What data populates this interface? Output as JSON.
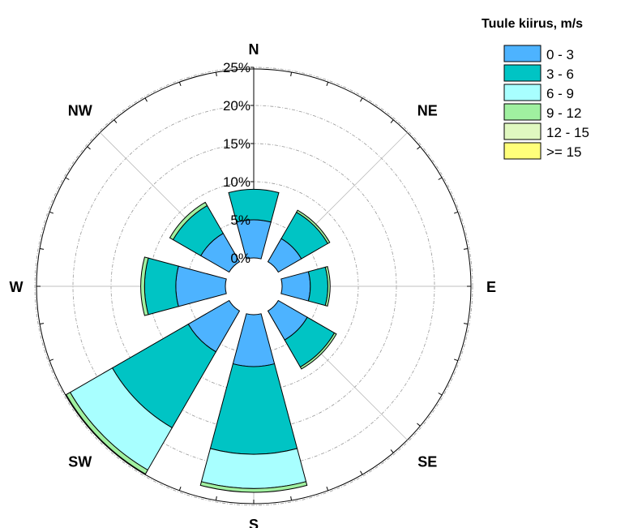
{
  "chart_data": {
    "type": "windrose",
    "legend_title": "Tuule kiirus, m/s",
    "directions": [
      "N",
      "NE",
      "E",
      "SE",
      "S",
      "SW",
      "W",
      "NW"
    ],
    "direction_angles": [
      0,
      45,
      90,
      135,
      180,
      225,
      270,
      315
    ],
    "radial_ticks": [
      "0%",
      "5%",
      "10%",
      "15%",
      "20%",
      "25%"
    ],
    "radial_range": [
      0,
      25
    ],
    "grid": true,
    "legend_position": "top-right",
    "bins": [
      {
        "label": "0 - 3",
        "color": "#4db3ff"
      },
      {
        "label": "3 - 6",
        "color": "#00c4c4"
      },
      {
        "label": "6 - 9",
        "color": "#a8ffff"
      },
      {
        "label": "9 - 12",
        "color": "#a0f0a0"
      },
      {
        "label": "12 - 15",
        "color": "#e0f8c0"
      },
      {
        "label": ">= 15",
        "color": "#ffff7a"
      }
    ],
    "series": [
      {
        "direction": "N",
        "values": [
          5.0,
          4.0,
          0.0,
          0.0,
          0.0,
          0.0
        ]
      },
      {
        "direction": "NE",
        "values": [
          3.5,
          4.0,
          0.0,
          0.3,
          0.0,
          0.0
        ]
      },
      {
        "direction": "E",
        "values": [
          3.7,
          2.3,
          0.0,
          0.3,
          0.0,
          0.0
        ]
      },
      {
        "direction": "SE",
        "values": [
          4.4,
          4.1,
          0.0,
          0.3,
          0.0,
          0.0
        ]
      },
      {
        "direction": "S",
        "values": [
          6.8,
          11.5,
          4.5,
          0.5,
          0.0,
          0.0
        ]
      },
      {
        "direction": "SW",
        "values": [
          6.2,
          11.5,
          6.4,
          0.6,
          0.0,
          0.0
        ]
      },
      {
        "direction": "W",
        "values": [
          6.5,
          4.1,
          0.0,
          0.5,
          0.0,
          0.0
        ]
      },
      {
        "direction": "NW",
        "values": [
          4.3,
          4.2,
          0.0,
          0.5,
          0.0,
          0.0
        ]
      }
    ]
  }
}
